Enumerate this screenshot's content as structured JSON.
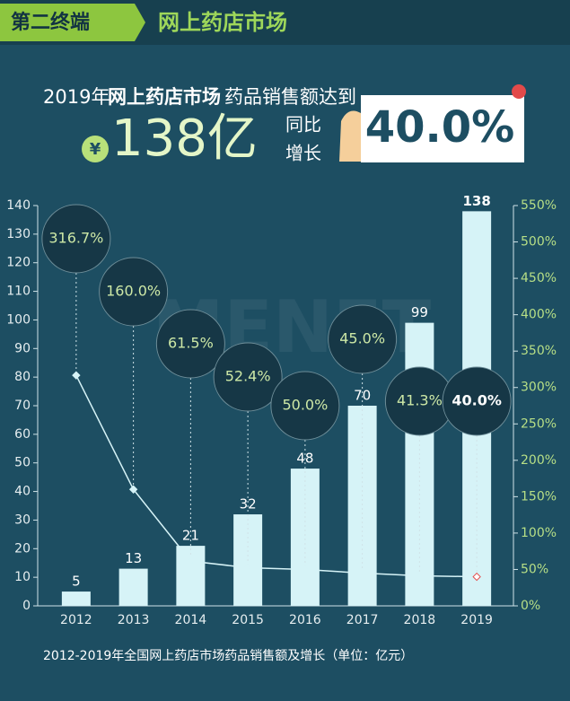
{
  "header": {
    "tag": "第二终端",
    "title": "网上药店市场"
  },
  "headline": {
    "year": "2019年",
    "market": "网上药店市场",
    "text": "药品销售额达到",
    "currency": "¥",
    "amount": "138亿",
    "growth_label_1": "同比",
    "growth_label_2": "增长",
    "growth": "40.0%"
  },
  "chart_data": {
    "type": "bar-line",
    "watermark": "MENET",
    "caption": "2012-2019年全国网上药店市场药品销售额及增长（单位：亿元）",
    "categories": [
      "2012",
      "2013",
      "2014",
      "2015",
      "2016",
      "2017",
      "2018",
      "2019"
    ],
    "series": [
      {
        "type": "bar",
        "color": "#d6f3f7",
        "values": [
          5,
          13,
          21,
          32,
          48,
          70,
          99,
          138
        ]
      },
      {
        "type": "line",
        "axis": "y2",
        "color": "#d6f3f7",
        "values": [
          316.7,
          160.0,
          61.5,
          52.4,
          50.0,
          45.0,
          41.3,
          40.0
        ],
        "value_labels": [
          "316.7%",
          "160.0%",
          "61.5%",
          "52.4%",
          "50.0%",
          "45.0%",
          "41.3%",
          "40.0%"
        ]
      }
    ],
    "ylim": [
      0,
      140
    ],
    "yticks": [
      0,
      10,
      20,
      30,
      40,
      50,
      60,
      70,
      80,
      90,
      100,
      110,
      120,
      130,
      140
    ],
    "y2lim": [
      0,
      550
    ],
    "y2ticks": [
      {
        "value": 0,
        "label": "0%"
      },
      {
        "value": 50,
        "label": "50%"
      },
      {
        "value": 100,
        "label": "100%"
      },
      {
        "value": 150,
        "label": "150%"
      },
      {
        "value": 200,
        "label": "200%"
      },
      {
        "value": 250,
        "label": "250%"
      },
      {
        "value": 300,
        "label": "300%"
      },
      {
        "value": 350,
        "label": "350%"
      },
      {
        "value": 400,
        "label": "400%"
      },
      {
        "value": 450,
        "label": "450%"
      },
      {
        "value": 500,
        "label": "500%"
      },
      {
        "value": 550,
        "label": "550%"
      }
    ]
  }
}
